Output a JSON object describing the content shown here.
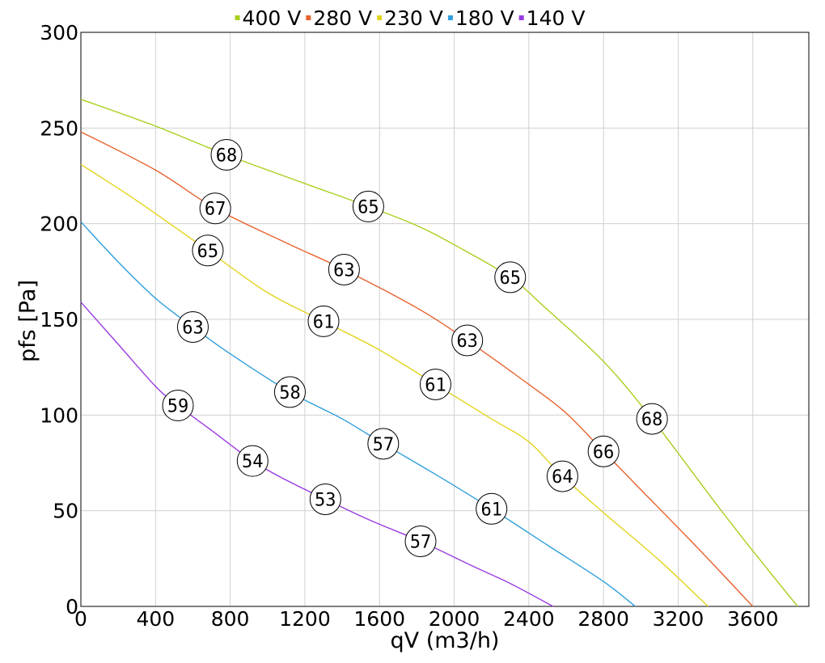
{
  "chart_data": {
    "type": "line",
    "xlabel": "qV (m3/h)",
    "ylabel": "pfs [Pa]",
    "xlim": [
      0,
      3900
    ],
    "ylim": [
      0,
      300
    ],
    "x_ticks": [
      "0",
      "400",
      "800",
      "1200",
      "1600",
      "2000",
      "2400",
      "2800",
      "3200",
      "3600"
    ],
    "y_ticks": [
      "0",
      "50",
      "100",
      "150",
      "200",
      "250",
      "300"
    ],
    "grid": true,
    "legend_position": "top",
    "series": [
      {
        "name": "400 V",
        "color": "#a8cf1e",
        "points": [
          [
            0,
            265
          ],
          [
            400,
            251
          ],
          [
            780,
            236
          ],
          [
            1200,
            221
          ],
          [
            1540,
            209
          ],
          [
            1800,
            199
          ],
          [
            2000,
            189
          ],
          [
            2300,
            172
          ],
          [
            2500,
            155
          ],
          [
            2800,
            128
          ],
          [
            3060,
            98
          ],
          [
            3400,
            54
          ],
          [
            3600,
            29
          ],
          [
            3840,
            0
          ]
        ],
        "labels": [
          {
            "x": 780,
            "y": 236,
            "text": "68"
          },
          {
            "x": 1540,
            "y": 209,
            "text": "65"
          },
          {
            "x": 2300,
            "y": 172,
            "text": "65"
          },
          {
            "x": 3060,
            "y": 98,
            "text": "68"
          }
        ]
      },
      {
        "name": "280 V",
        "color": "#e8622e",
        "points": [
          [
            0,
            248
          ],
          [
            400,
            228
          ],
          [
            720,
            208
          ],
          [
            1100,
            190
          ],
          [
            1410,
            176
          ],
          [
            1800,
            156
          ],
          [
            2070,
            139
          ],
          [
            2400,
            116
          ],
          [
            2600,
            101
          ],
          [
            2800,
            81
          ],
          [
            3000,
            61
          ],
          [
            3300,
            31
          ],
          [
            3600,
            0
          ]
        ],
        "labels": [
          {
            "x": 720,
            "y": 208,
            "text": "67"
          },
          {
            "x": 1410,
            "y": 176,
            "text": "63"
          },
          {
            "x": 2070,
            "y": 139,
            "text": "63"
          },
          {
            "x": 2800,
            "y": 81,
            "text": "66"
          }
        ]
      },
      {
        "name": "230 V",
        "color": "#e3d41e",
        "points": [
          [
            0,
            231
          ],
          [
            300,
            212
          ],
          [
            680,
            186
          ],
          [
            1000,
            164
          ],
          [
            1300,
            149
          ],
          [
            1600,
            134
          ],
          [
            1900,
            116
          ],
          [
            2200,
            98
          ],
          [
            2400,
            86
          ],
          [
            2580,
            68
          ],
          [
            2800,
            49
          ],
          [
            3100,
            24
          ],
          [
            3360,
            0
          ]
        ],
        "labels": [
          {
            "x": 680,
            "y": 186,
            "text": "65"
          },
          {
            "x": 1300,
            "y": 149,
            "text": "61"
          },
          {
            "x": 1900,
            "y": 116,
            "text": "61"
          },
          {
            "x": 2580,
            "y": 68,
            "text": "64"
          }
        ]
      },
      {
        "name": "180 V",
        "color": "#2e9fdc",
        "points": [
          [
            0,
            201
          ],
          [
            200,
            180
          ],
          [
            400,
            161
          ],
          [
            600,
            146
          ],
          [
            800,
            132
          ],
          [
            1120,
            112
          ],
          [
            1400,
            98
          ],
          [
            1620,
            85
          ],
          [
            1900,
            69
          ],
          [
            2200,
            51
          ],
          [
            2500,
            32
          ],
          [
            2800,
            13
          ],
          [
            2970,
            0
          ]
        ],
        "labels": [
          {
            "x": 600,
            "y": 146,
            "text": "63"
          },
          {
            "x": 1120,
            "y": 112,
            "text": "58"
          },
          {
            "x": 1620,
            "y": 85,
            "text": "57"
          },
          {
            "x": 2200,
            "y": 51,
            "text": "61"
          }
        ]
      },
      {
        "name": "140 V",
        "color": "#9a3ce2",
        "points": [
          [
            0,
            159
          ],
          [
            200,
            137
          ],
          [
            400,
            115
          ],
          [
            520,
            105
          ],
          [
            700,
            92
          ],
          [
            920,
            76
          ],
          [
            1100,
            66
          ],
          [
            1310,
            56
          ],
          [
            1550,
            45
          ],
          [
            1820,
            34
          ],
          [
            2100,
            21
          ],
          [
            2300,
            12
          ],
          [
            2530,
            0
          ]
        ],
        "labels": [
          {
            "x": 520,
            "y": 105,
            "text": "59"
          },
          {
            "x": 920,
            "y": 76,
            "text": "54"
          },
          {
            "x": 1310,
            "y": 56,
            "text": "53"
          },
          {
            "x": 1820,
            "y": 34,
            "text": "57"
          }
        ]
      }
    ]
  }
}
